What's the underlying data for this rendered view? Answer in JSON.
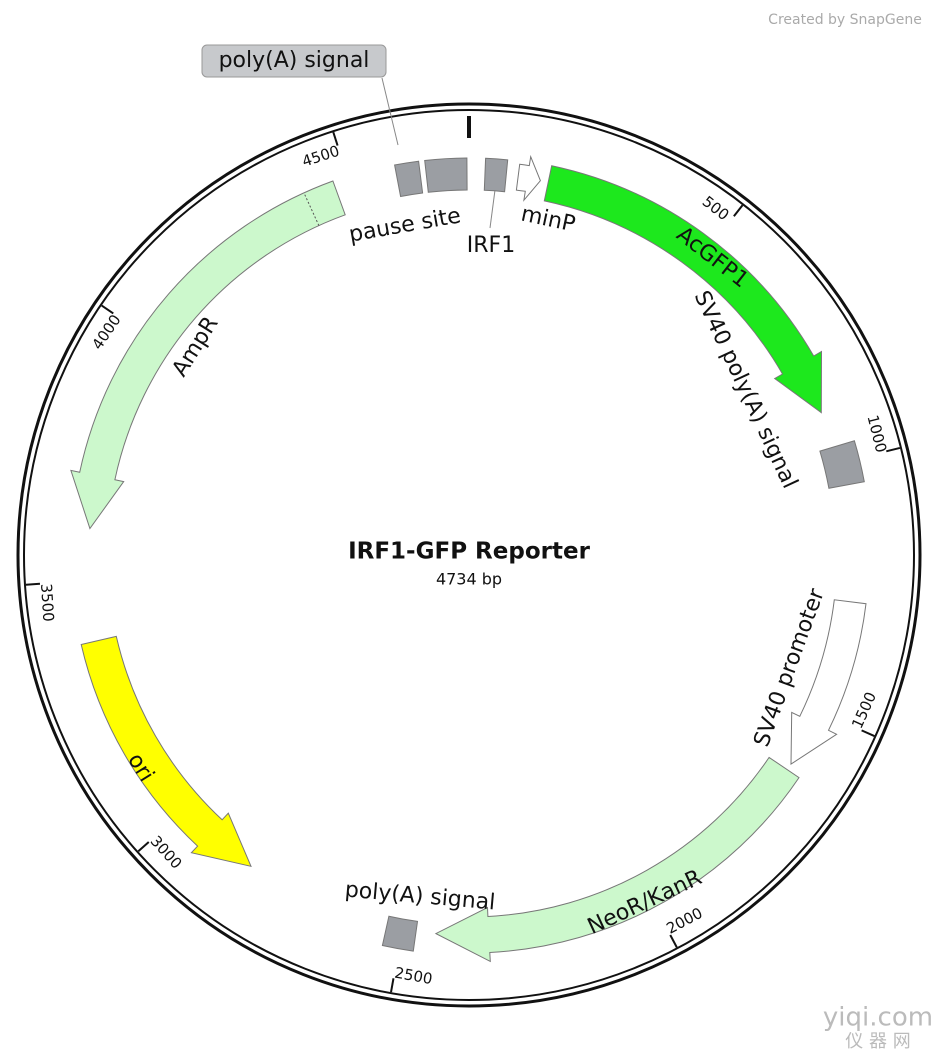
{
  "title": "IRF1-GFP Reporter",
  "size": {
    "value": 4734,
    "label": "4734 bp"
  },
  "ticks": [
    500,
    1000,
    1500,
    2000,
    2500,
    3000,
    3500,
    4000,
    4500
  ],
  "features": [
    {
      "label": "poly(A) signal"
    },
    {
      "label": "pause site"
    },
    {
      "label": "IRF1"
    },
    {
      "label": "minP"
    },
    {
      "label": "AcGFP1"
    },
    {
      "label": "SV40 poly(A) signal"
    },
    {
      "label": "SV40 promoter"
    },
    {
      "label": "NeoR/KanR"
    },
    {
      "label": "poly(A) signal"
    },
    {
      "label": "ori"
    },
    {
      "label": "AmpR"
    }
  ],
  "credit": "Created by SnapGene",
  "watermark": {
    "site": "yiqi.com",
    "name": "仪 器 网"
  }
}
